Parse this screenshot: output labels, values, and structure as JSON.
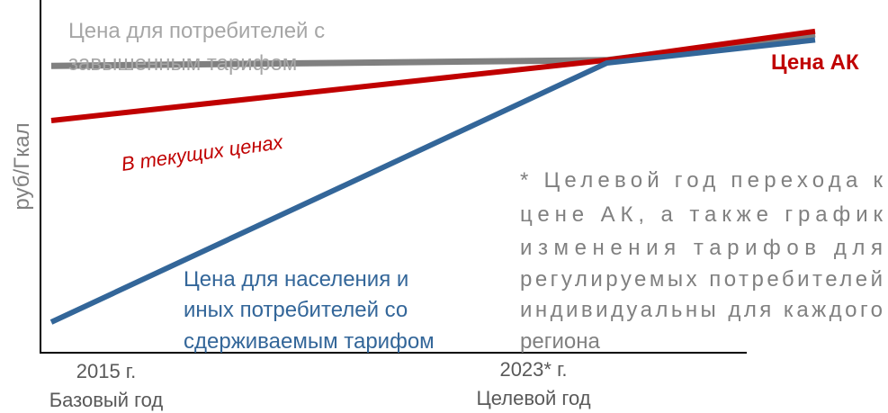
{
  "chart_data": {
    "type": "line",
    "title": "",
    "ylabel": "руб/Гкал",
    "x_ticks": [
      {
        "year": "2015 г.",
        "caption": "Базовый год"
      },
      {
        "year": "2023* г.",
        "caption": "Целевой год"
      }
    ],
    "series": [
      {
        "key": "elevated",
        "label_lines": [
          "Цена для потребителей с",
          "завышенным тарифом"
        ],
        "color": "#808080",
        "points": [
          [
            2015,
            0.89
          ],
          [
            2023,
            0.91
          ],
          [
            2026,
            1.0
          ]
        ]
      },
      {
        "key": "current",
        "label_lines": [
          "В текущих ценах"
        ],
        "color": "#c00000",
        "points": [
          [
            2015,
            0.7
          ],
          [
            2023,
            0.91
          ],
          [
            2026,
            1.01
          ]
        ]
      },
      {
        "key": "restrained",
        "label_lines": [
          "Цена для населения и",
          "иных потребителей со",
          "сдерживаемым  тарифом"
        ],
        "color": "#336699",
        "points": [
          [
            2015,
            0.0
          ],
          [
            2023,
            0.9
          ],
          [
            2026,
            0.98
          ]
        ]
      },
      {
        "key": "ak",
        "label_lines": [
          "Цена АК"
        ],
        "color": "#c00000",
        "points": []
      }
    ],
    "note_lines": [
      "* Целевой год перехода к",
      "цене АК, а также график",
      "изменения тарифов для",
      "регулируемых потребителей",
      "индивидуальны для каждого",
      "региона"
    ],
    "axis_color": "#000000",
    "text_color": "#808080"
  }
}
